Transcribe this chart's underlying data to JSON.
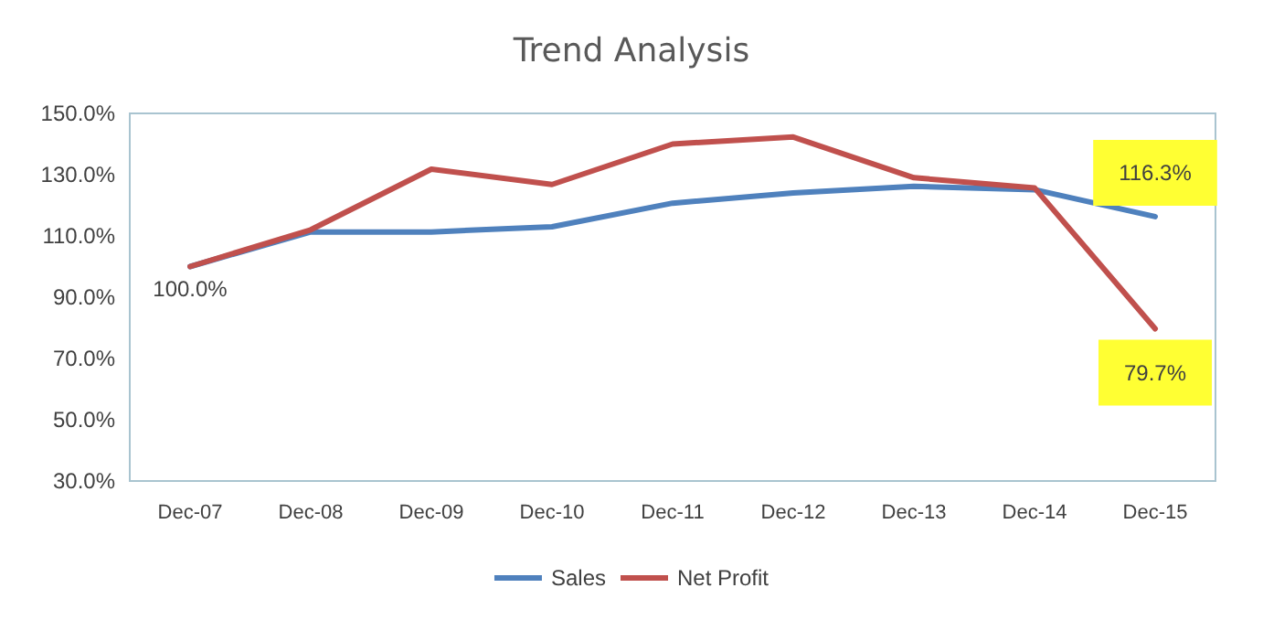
{
  "chart_data": {
    "type": "line",
    "title": "Trend Analysis",
    "categories": [
      "Dec-07",
      "Dec-08",
      "Dec-09",
      "Dec-10",
      "Dec-11",
      "Dec-12",
      "Dec-13",
      "Dec-14",
      "Dec-15"
    ],
    "series": [
      {
        "name": "Sales",
        "color": "#4f81bd",
        "values": [
          100,
          111.3,
          111.3,
          113,
          120.7,
          124,
          126.2,
          125.1,
          116.3
        ],
        "value_labels": [
          "100.0%",
          null,
          null,
          null,
          null,
          null,
          null,
          null,
          "116.3%"
        ]
      },
      {
        "name": "Net Profit",
        "color": "#c0504d",
        "values": [
          100,
          112,
          131.8,
          126.8,
          140,
          142.3,
          129,
          125.7,
          79.7
        ],
        "value_labels": [
          null,
          null,
          null,
          null,
          null,
          null,
          null,
          null,
          "79.7%"
        ]
      }
    ],
    "ylim": [
      30,
      150
    ],
    "yticks": [
      {
        "value": 30,
        "label": "30.0%"
      },
      {
        "value": 50,
        "label": "50.0%"
      },
      {
        "value": 70,
        "label": "70.0%"
      },
      {
        "value": 90,
        "label": "90.0%"
      },
      {
        "value": 110,
        "label": "110.0%"
      },
      {
        "value": 130,
        "label": "130.0%"
      },
      {
        "value": 150,
        "label": "150.0%"
      }
    ],
    "grid": false,
    "legend": "bottom",
    "marker": "none",
    "line_style": "solid"
  }
}
